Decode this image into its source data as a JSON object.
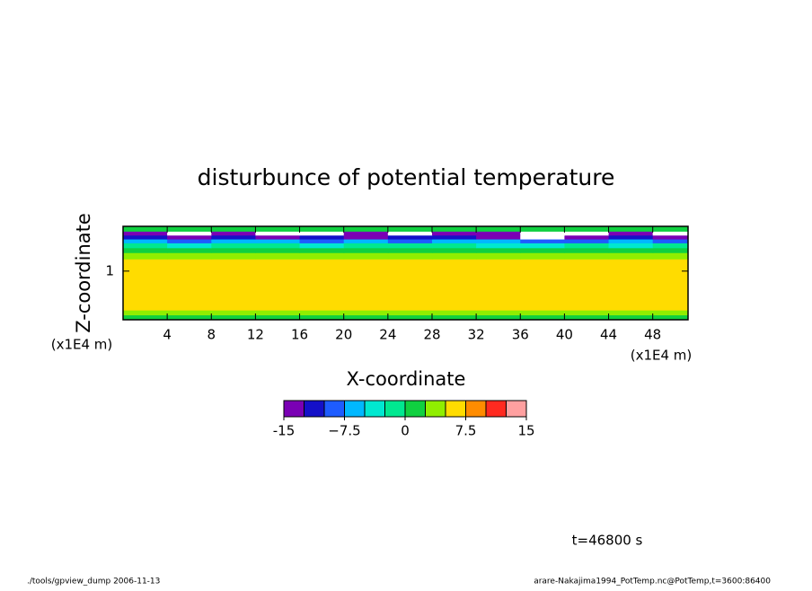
{
  "chart_data": {
    "type": "contour",
    "title": "disturbunce of potential temperature",
    "x_label": "X-coordinate",
    "y_label": "Z-coordinate",
    "x_unit": "(x1E4 m)",
    "y_unit": "(x1E4 m)",
    "xlim": [
      0,
      51.2
    ],
    "ylim": [
      0,
      1.92
    ],
    "xticks": [
      4,
      8,
      12,
      16,
      20,
      24,
      28,
      32,
      36,
      40,
      44,
      48
    ],
    "yticks": [
      1
    ],
    "xedges": [
      0,
      4,
      8,
      12,
      16,
      20,
      24,
      28,
      32,
      36,
      40,
      44,
      48,
      52
    ],
    "yedges": [
      0,
      0.1,
      0.2,
      0.4,
      0.8,
      1.1,
      1.25,
      1.38,
      1.48,
      1.58,
      1.66,
      1.74,
      1.82,
      1.92
    ],
    "z": [
      [
        1,
        1,
        1,
        1,
        1,
        1,
        1,
        1,
        1,
        1,
        1,
        1,
        1
      ],
      [
        4,
        4,
        4,
        4,
        4,
        4,
        4,
        4,
        4,
        4,
        4,
        4,
        4
      ],
      [
        6,
        6,
        6,
        6,
        6,
        6,
        6,
        6,
        6,
        6,
        6,
        6,
        6
      ],
      [
        6,
        6,
        6,
        6,
        6,
        6,
        6,
        6,
        6,
        6,
        6,
        6,
        6
      ],
      [
        6,
        6,
        6,
        6,
        6,
        6,
        6,
        6,
        6,
        6,
        6,
        6,
        6
      ],
      [
        6,
        6,
        6,
        6,
        6,
        6,
        6,
        6,
        6,
        6,
        6,
        6,
        6
      ],
      [
        4,
        4,
        4,
        4,
        4,
        4,
        4,
        4,
        4,
        4,
        4,
        4,
        4
      ],
      [
        1,
        1,
        1,
        1,
        1,
        1,
        1,
        1,
        1,
        1,
        1,
        1,
        1
      ],
      [
        -2,
        -4,
        -2,
        -2,
        -4,
        -2,
        -2,
        -2,
        -4,
        -4,
        -2,
        -4,
        -2
      ],
      [
        -6,
        -9,
        -6,
        -6,
        -9,
        -6,
        -9,
        -6,
        -6,
        -9,
        -9,
        -6,
        -9
      ],
      [
        -11,
        -14,
        -11,
        -14,
        -11,
        -14,
        -11,
        -11,
        -14,
        -16,
        -14,
        -11,
        -14
      ],
      [
        -13,
        -16,
        -13,
        -16,
        -16,
        -13,
        -16,
        -13,
        -13,
        -16,
        -16,
        -13,
        -16
      ],
      [
        1,
        1,
        1,
        1,
        1,
        1,
        1,
        1,
        1,
        1,
        1,
        1,
        1
      ]
    ],
    "levels": [
      -15,
      -12.5,
      -10,
      -7.5,
      -5,
      -2.5,
      0,
      2.5,
      5,
      7.5,
      10,
      12.5,
      15
    ],
    "colors": [
      "#7a00b4",
      "#1410c8",
      "#1e5cff",
      "#00b8ff",
      "#00e8d0",
      "#00e890",
      "#10d040",
      "#90ee00",
      "#ffdc00",
      "#ff8c00",
      "#ff2a20",
      "#ffa0a0"
    ],
    "colorbar_ticks": [
      -15,
      {
        "value": -7.5,
        "label": "−7.5"
      },
      0,
      7.5,
      15
    ],
    "time_label": "t=46800 s",
    "footer_left": "./tools/gpview_dump  2006-11-13",
    "footer_right": "arare-Nakajima1994_PotTemp.nc@PotTemp,t=3600:86400"
  }
}
